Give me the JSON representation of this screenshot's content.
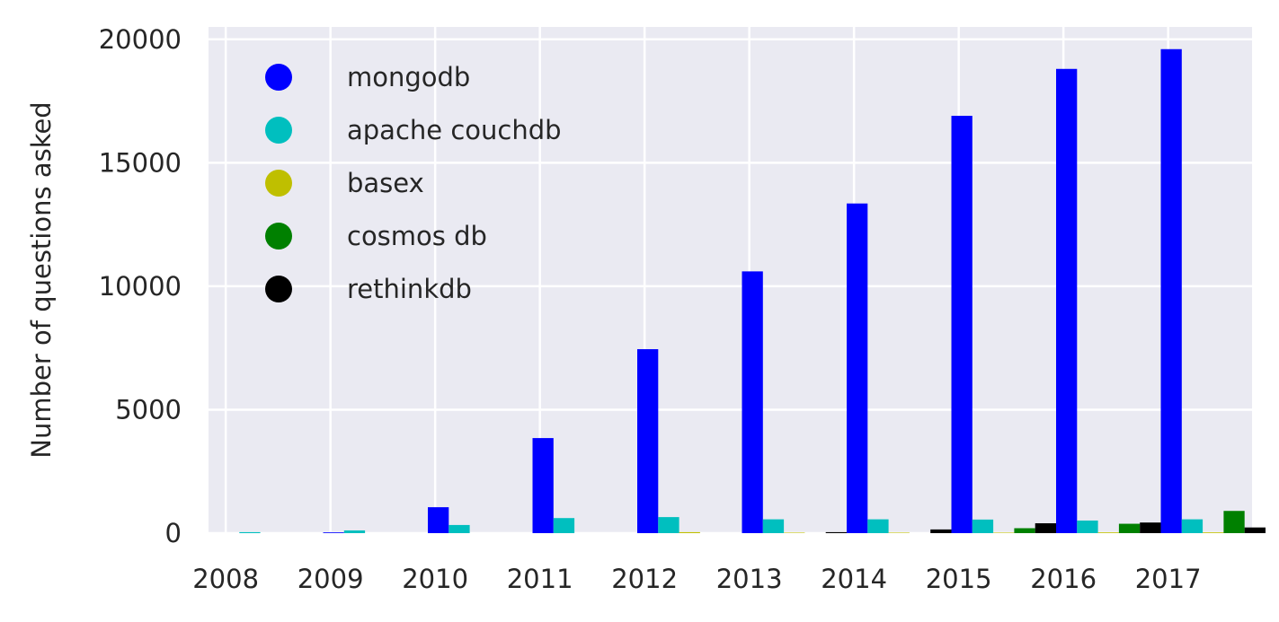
{
  "chart_data": {
    "type": "bar",
    "title": "",
    "xlabel": "",
    "ylabel": "Number of questions asked",
    "categories": [
      "2008",
      "2009",
      "2010",
      "2011",
      "2012",
      "2013",
      "2014",
      "2015",
      "2016",
      "2017"
    ],
    "ylim": [
      0,
      20500
    ],
    "yticks": [
      0,
      5000,
      10000,
      15000,
      20000
    ],
    "grid": true,
    "legend_position": "top-left",
    "series": [
      {
        "name": "mongodb",
        "color": "#0000ff",
        "values": [
          0,
          30,
          1050,
          3850,
          7450,
          10600,
          13350,
          16900,
          18800,
          19600
        ]
      },
      {
        "name": "apache couchdb",
        "color": "#00bfbf",
        "values": [
          40,
          110,
          330,
          610,
          650,
          560,
          560,
          550,
          510,
          560
        ]
      },
      {
        "name": "basex",
        "color": "#bfbf00",
        "values": [
          0,
          0,
          0,
          0,
          40,
          20,
          20,
          20,
          30,
          30
        ]
      },
      {
        "name": "cosmos db",
        "color": "#008000",
        "values": [
          0,
          0,
          0,
          0,
          0,
          0,
          0,
          200,
          380,
          900
        ]
      },
      {
        "name": "rethinkdb",
        "color": "#000000",
        "values": [
          0,
          0,
          0,
          0,
          0,
          40,
          150,
          400,
          430,
          230
        ]
      }
    ]
  }
}
